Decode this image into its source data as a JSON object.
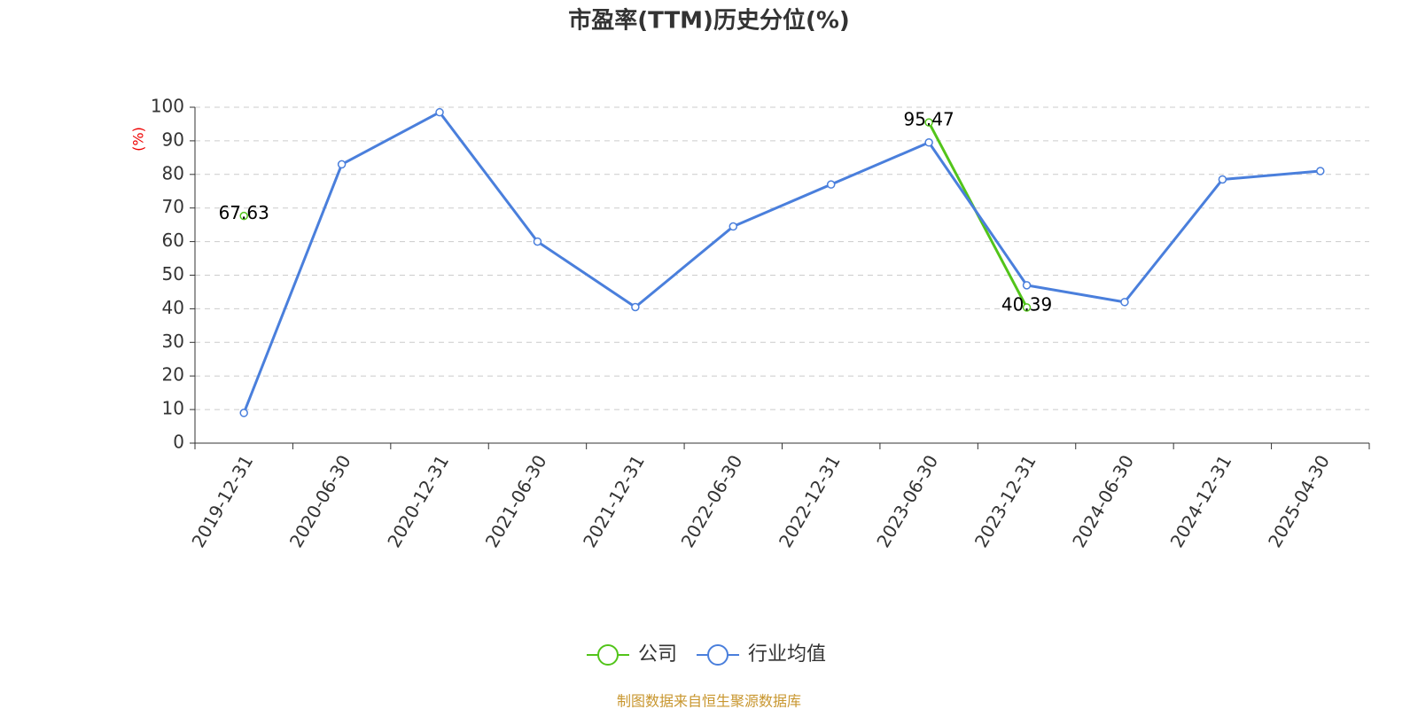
{
  "chart_data": {
    "type": "line",
    "title": "市盈率(TTM)历史分位(%)",
    "y_label": "(%)",
    "source": "制图数据来自恒生聚源数据库",
    "categories": [
      "2019-12-31",
      "2020-06-30",
      "2020-12-31",
      "2021-06-30",
      "2021-12-31",
      "2022-06-30",
      "2022-12-31",
      "2023-06-30",
      "2023-12-31",
      "2024-06-30",
      "2024-12-31",
      "2025-04-30"
    ],
    "series": [
      {
        "name": "公司",
        "color": "#52c41a",
        "values": [
          67.63,
          null,
          null,
          null,
          null,
          null,
          null,
          95.47,
          40.39,
          null,
          null,
          null
        ],
        "show_labels": true
      },
      {
        "name": "行业均值",
        "color": "#4a7fdc",
        "values": [
          9,
          83,
          98.5,
          60,
          40.5,
          64.5,
          77,
          89.5,
          47,
          42,
          78.5,
          81
        ],
        "show_labels": false
      }
    ],
    "ylim": [
      0,
      100
    ],
    "yticks": [
      0,
      10,
      20,
      30,
      40,
      50,
      60,
      70,
      80,
      90,
      100
    ],
    "grid": true
  }
}
